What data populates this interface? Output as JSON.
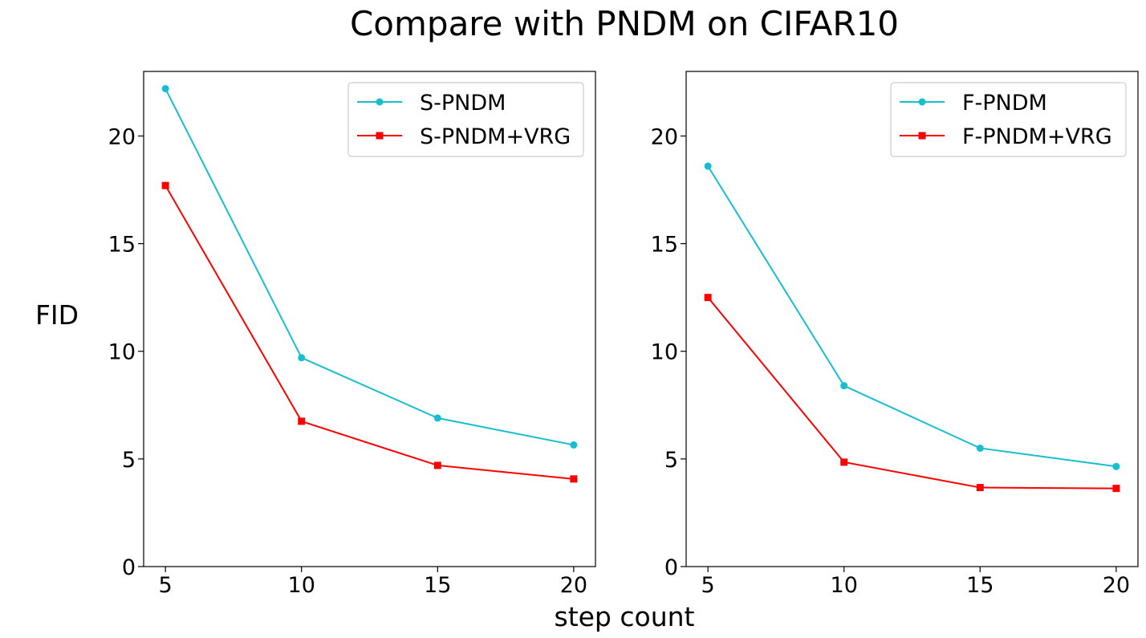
{
  "figure": {
    "title": "Compare with PNDM on CIFAR10",
    "shared_xlabel": "step count",
    "shared_ylabel": "FID"
  },
  "chart_data": [
    {
      "type": "line",
      "x": [
        5,
        10,
        15,
        20
      ],
      "xticks": [
        5,
        10,
        15,
        20
      ],
      "yticks": [
        0,
        5,
        10,
        15,
        20
      ],
      "xlim": [
        4.2,
        20.8
      ],
      "ylim": [
        0,
        23
      ],
      "grid": false,
      "legend_position": "upper-right",
      "series": [
        {
          "name": "S-PNDM",
          "values": [
            22.2,
            9.7,
            6.9,
            5.65
          ],
          "color": "#17becf",
          "marker": "circle"
        },
        {
          "name": "S-PNDM+VRG",
          "values": [
            17.7,
            6.75,
            4.7,
            4.07
          ],
          "color": "#ff0000",
          "marker": "square"
        }
      ]
    },
    {
      "type": "line",
      "x": [
        5,
        10,
        15,
        20
      ],
      "xticks": [
        5,
        10,
        15,
        20
      ],
      "yticks": [
        0,
        5,
        10,
        15,
        20
      ],
      "xlim": [
        4.2,
        20.8
      ],
      "ylim": [
        0,
        23
      ],
      "grid": false,
      "legend_position": "upper-right",
      "series": [
        {
          "name": "F-PNDM",
          "values": [
            18.6,
            8.4,
            5.5,
            4.65
          ],
          "color": "#17becf",
          "marker": "circle"
        },
        {
          "name": "F-PNDM+VRG",
          "values": [
            12.5,
            4.85,
            3.67,
            3.63
          ],
          "color": "#ff0000",
          "marker": "square"
        }
      ]
    }
  ]
}
